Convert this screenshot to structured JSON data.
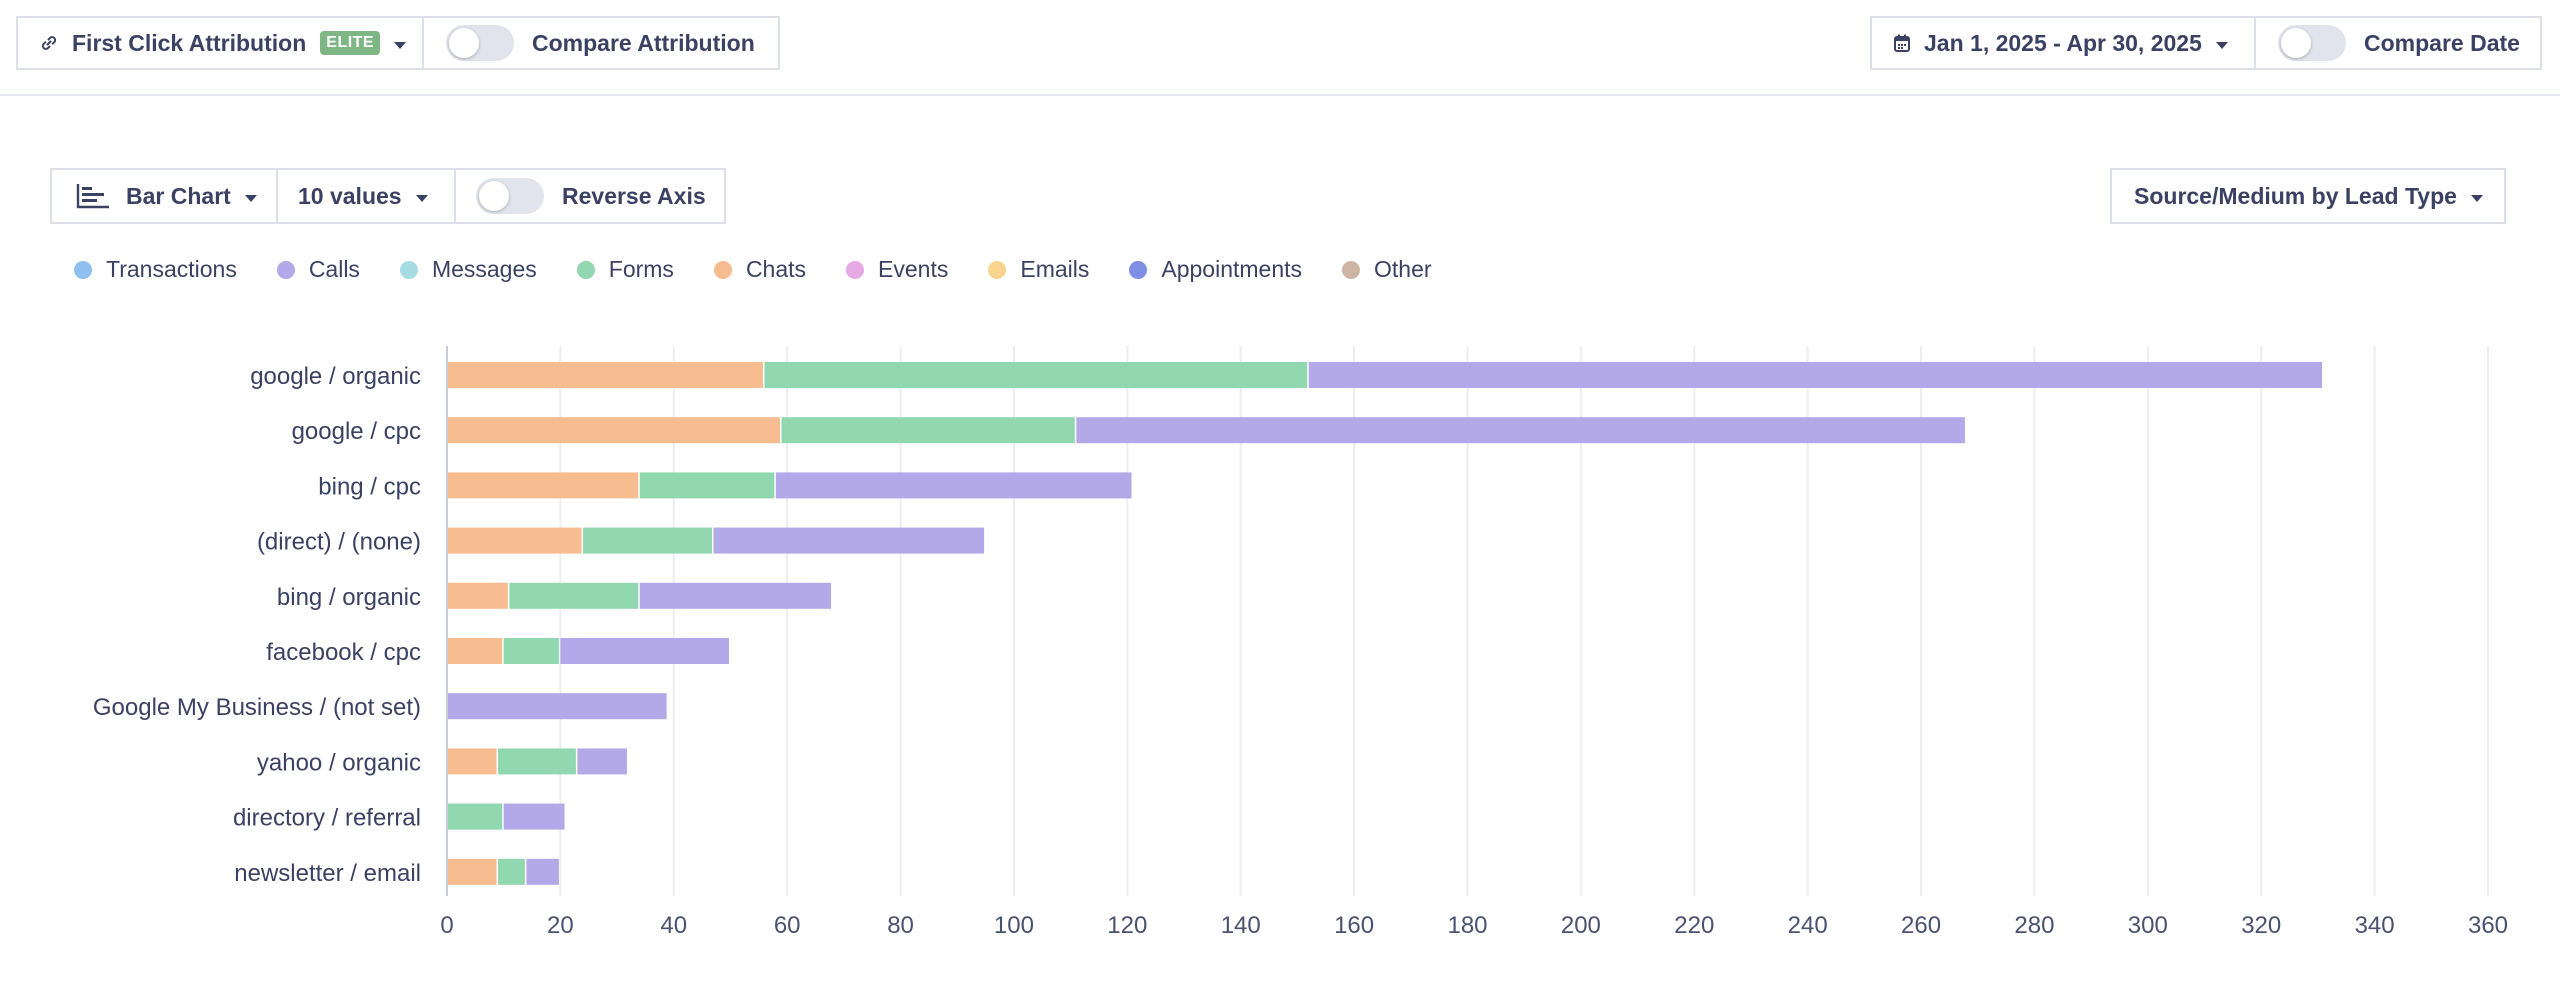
{
  "header": {
    "attribution_label": "First Click Attribution",
    "attribution_badge": "ELITE",
    "compare_attribution_label": "Compare Attribution",
    "date_range_label": "Jan 1, 2025 - Apr 30, 2025",
    "compare_date_label": "Compare Date"
  },
  "controls": {
    "chart_type_label": "Bar Chart",
    "values_count_label": "10 values",
    "reverse_axis_label": "Reverse Axis",
    "grouping_label": "Source/Medium by Lead Type"
  },
  "legend": [
    {
      "label": "Transactions",
      "color": "#8fbfee"
    },
    {
      "label": "Calls",
      "color": "#b3a9e8"
    },
    {
      "label": "Messages",
      "color": "#a6dde2"
    },
    {
      "label": "Forms",
      "color": "#91d7af"
    },
    {
      "label": "Chats",
      "color": "#f7bc90"
    },
    {
      "label": "Events",
      "color": "#e6a9e6"
    },
    {
      "label": "Emails",
      "color": "#f9d48f"
    },
    {
      "label": "Appointments",
      "color": "#7d8ee4"
    },
    {
      "label": "Other",
      "color": "#cdb5a5"
    }
  ],
  "chart_data": {
    "type": "bar",
    "orientation": "horizontal",
    "stacked": true,
    "categories": [
      "google / organic",
      "google / cpc",
      "bing / cpc",
      "(direct) / (none)",
      "bing / organic",
      "facebook / cpc",
      "Google My Business / (not set)",
      "yahoo / organic",
      "directory / referral",
      "newsletter / email"
    ],
    "series": [
      {
        "name": "Chats",
        "color": "#f7bc90",
        "values": [
          56,
          59,
          34,
          24,
          11,
          10,
          0,
          9,
          0,
          9
        ]
      },
      {
        "name": "Forms",
        "color": "#91d7af",
        "values": [
          96,
          52,
          24,
          23,
          23,
          10,
          0,
          14,
          10,
          5
        ]
      },
      {
        "name": "Calls",
        "color": "#b3a9e8",
        "values": [
          179,
          157,
          63,
          48,
          34,
          30,
          39,
          9,
          11,
          6
        ]
      }
    ],
    "xlim": [
      0,
      360
    ],
    "xticks": [
      0,
      20,
      40,
      60,
      80,
      100,
      120,
      140,
      160,
      180,
      200,
      220,
      240,
      260,
      280,
      300,
      320,
      340,
      360
    ],
    "grid": true,
    "legend_position": "top-left"
  }
}
